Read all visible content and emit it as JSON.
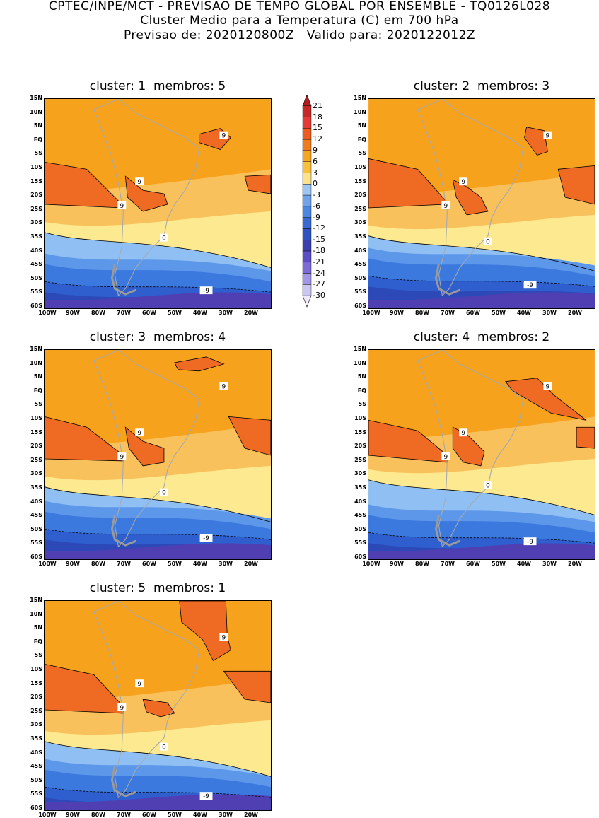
{
  "header": {
    "line1": "CPTEC/INPE/MCT - PREVISAO DE TEMPO GLOBAL POR ENSEMBLE - TQ0126L028",
    "line2": "Cluster Medio para a Temperatura (C) em 700 hPa",
    "line3": "Previsao de: 2020120800Z   Valido para: 2020122012Z"
  },
  "panels": [
    {
      "title": "cluster: 1  membros: 5"
    },
    {
      "title": "cluster: 2  membros: 3"
    },
    {
      "title": "cluster: 3  membros: 4"
    },
    {
      "title": "cluster: 4  membros: 2"
    },
    {
      "title": "cluster: 5  membros: 1"
    }
  ],
  "y_ticks": [
    "15N",
    "10N",
    "5N",
    "EQ",
    "5S",
    "10S",
    "15S",
    "20S",
    "25S",
    "30S",
    "35S",
    "40S",
    "45S",
    "50S",
    "55S",
    "60S"
  ],
  "x_ticks": [
    "100W",
    "90W",
    "80W",
    "70W",
    "60W",
    "50W",
    "40W",
    "30W",
    "20W"
  ],
  "contour_labels": {
    "warm": "9",
    "zero": "0",
    "cold": "-9"
  },
  "legend": {
    "values": [
      "21",
      "18",
      "15",
      "12",
      "9",
      "6",
      "3",
      "0",
      "-3",
      "-6",
      "-9",
      "-12",
      "-15",
      "-18",
      "-21",
      "-24",
      "-27",
      "-30"
    ],
    "colors": [
      "#b71c1c",
      "#c62828",
      "#e53935",
      "#ef5a1e",
      "#f07a1e",
      "#f5a623",
      "#f8c03c",
      "#fce28a",
      "#9ec6f4",
      "#6fa3ec",
      "#4a86e3",
      "#3869d4",
      "#2f52c2",
      "#3b3fb0",
      "#5b4cc8",
      "#7c6bd9",
      "#a296e6",
      "#ccc6f2"
    ]
  },
  "colors": {
    "orange": "#f7a21c",
    "dark_orange": "#ef6a22",
    "light_orange": "#f9c15c",
    "pale_yellow": "#fde98f",
    "light_blue": "#8fbff3",
    "mid_blue": "#5d97ea",
    "blue": "#3c79df",
    "dark_blue": "#2f5fcf",
    "deep_blue": "#2d49b8",
    "purple": "#4f3fb3",
    "coast": "#a9a9a9"
  }
}
